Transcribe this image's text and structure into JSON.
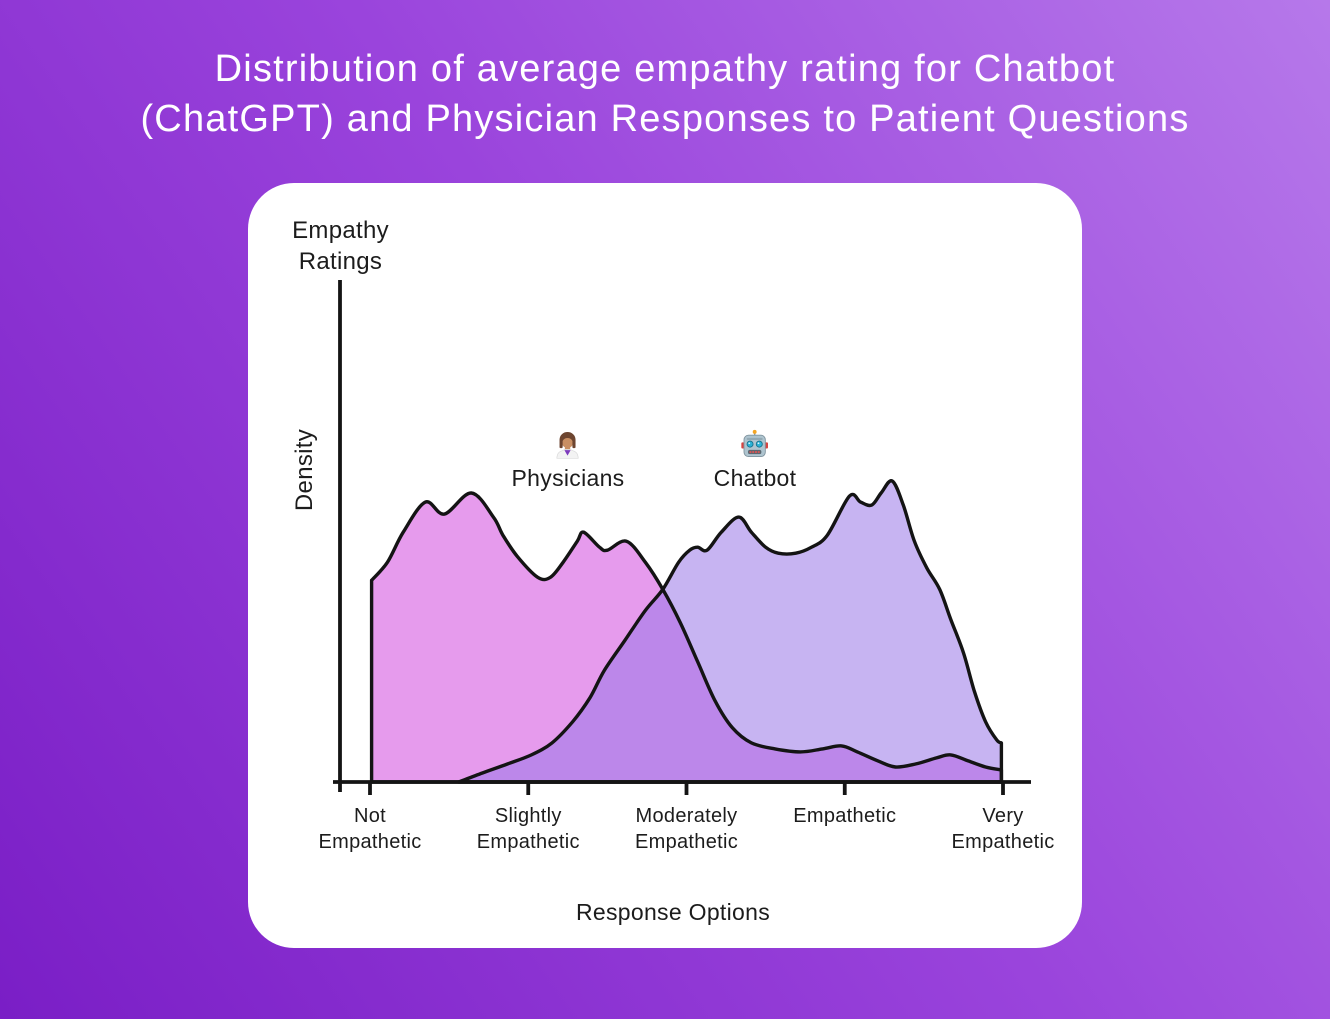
{
  "title": {
    "line1": "Distribution of average empathy rating for Chatbot",
    "line2": "(ChatGPT) and Physician Responses to Patient Questions"
  },
  "colors": {
    "background_light": "#b678ea",
    "background_dark": "#7a1ec6",
    "card": "#ffffff",
    "title_text": "#ffffff",
    "ink": "#1c1c1c",
    "outline": "#141414",
    "physicians_fill": "#e69bed",
    "chatbot_fill": "rgba(153,119,231,0.55)",
    "chatbot_fill_on_white": "#c7b4f2",
    "overlap_fill_appearance": "#bb93e6"
  },
  "chart_data": {
    "type": "area",
    "title": "Distribution of average empathy rating for Chatbot (ChatGPT) and Physician Responses to Patient Questions",
    "x_axis_title": "Response Options",
    "y_axis_title": "Density",
    "y_axis_top_title": "Empathy\nRatings",
    "grid": false,
    "categories": [
      "Not\nEmpathetic",
      "Slightly\nEmpathetic",
      "Moderately\nEmpathetic",
      "Empathetic",
      "Very\nEmpathetic"
    ],
    "x_tick_values": [
      1,
      2,
      3,
      4,
      5
    ],
    "x_range": [
      1,
      5
    ],
    "y_range": [
      0,
      1
    ],
    "legend": [
      {
        "name": "Physicians",
        "icon": "woman-health-worker-emoji",
        "emoji": "👩🏽‍⚕️"
      },
      {
        "name": "Chatbot",
        "icon": "robot-emoji",
        "emoji": "🤖"
      }
    ],
    "series": [
      {
        "name": "Physicians",
        "x": [
          1.01,
          1.11,
          1.21,
          1.35,
          1.47,
          1.64,
          1.78,
          1.84,
          1.93,
          2.06,
          2.14,
          2.22,
          2.31,
          2.35,
          2.45,
          2.5,
          2.62,
          2.74,
          2.85,
          2.96,
          3.07,
          3.18,
          3.29,
          3.41,
          3.56,
          3.72,
          3.86,
          3.98,
          4.08,
          4.21,
          4.32,
          4.45,
          4.58,
          4.67,
          4.78,
          4.89,
          4.99
        ],
        "y": [
          0.67,
          0.73,
          0.83,
          0.93,
          0.89,
          0.96,
          0.88,
          0.82,
          0.75,
          0.68,
          0.68,
          0.73,
          0.8,
          0.83,
          0.78,
          0.77,
          0.8,
          0.73,
          0.64,
          0.53,
          0.4,
          0.27,
          0.18,
          0.13,
          0.11,
          0.1,
          0.11,
          0.12,
          0.1,
          0.07,
          0.05,
          0.06,
          0.08,
          0.09,
          0.07,
          0.05,
          0.04
        ]
      },
      {
        "name": "Chatbot",
        "x": [
          1.56,
          1.71,
          1.87,
          2.02,
          2.15,
          2.28,
          2.39,
          2.48,
          2.61,
          2.74,
          2.85,
          2.95,
          3.02,
          3.07,
          3.13,
          3.22,
          3.33,
          3.41,
          3.5,
          3.58,
          3.69,
          3.79,
          3.89,
          4.03,
          4.1,
          4.17,
          4.23,
          4.3,
          4.37,
          4.44,
          4.52,
          4.6,
          4.67,
          4.75,
          4.82,
          4.89,
          4.96,
          4.99
        ],
        "y": [
          0.0,
          0.03,
          0.06,
          0.09,
          0.13,
          0.2,
          0.28,
          0.37,
          0.47,
          0.57,
          0.64,
          0.73,
          0.77,
          0.78,
          0.77,
          0.83,
          0.88,
          0.83,
          0.78,
          0.76,
          0.76,
          0.78,
          0.82,
          0.95,
          0.93,
          0.92,
          0.96,
          1.0,
          0.92,
          0.8,
          0.71,
          0.64,
          0.54,
          0.43,
          0.3,
          0.2,
          0.14,
          0.13
        ]
      }
    ]
  }
}
